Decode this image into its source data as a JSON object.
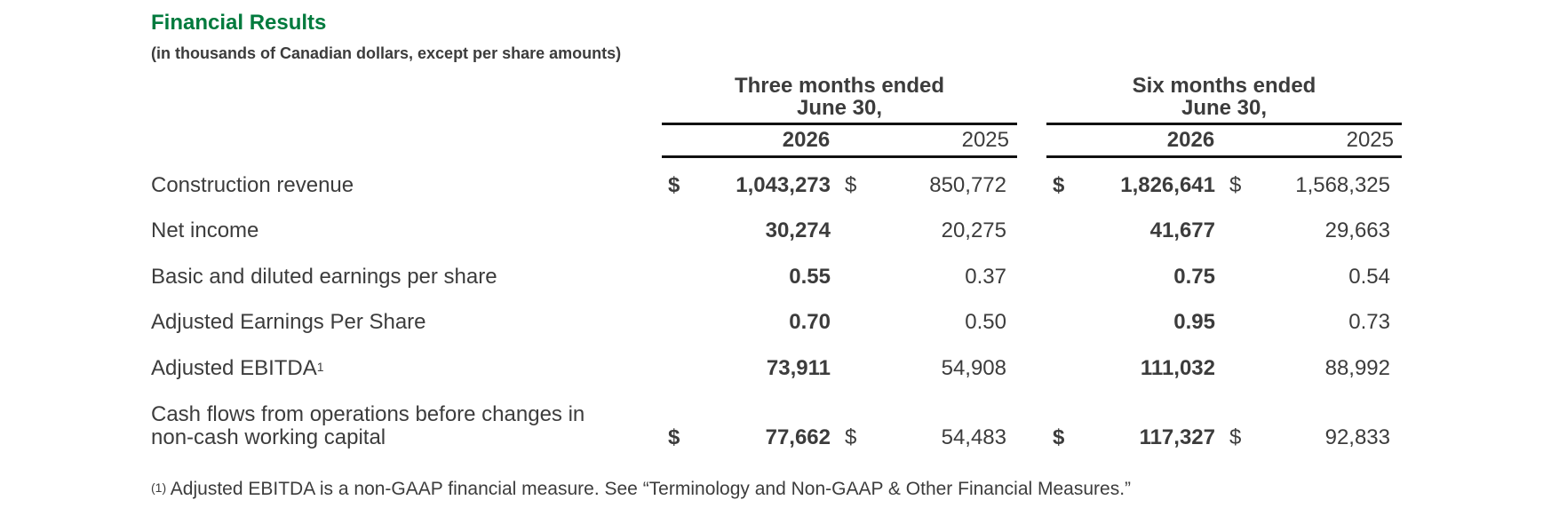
{
  "title": "Financial Results",
  "subtitle": "(in thousands of Canadian dollars, except per share amounts)",
  "periods": [
    {
      "header_line1": "Three months ended",
      "header_line2": "June 30,",
      "year_current": "2026",
      "year_prior": "2025"
    },
    {
      "header_line1": "Six months ended",
      "header_line2": "June 30,",
      "year_current": "2026",
      "year_prior": "2025"
    }
  ],
  "rows": [
    {
      "label": "Construction revenue",
      "currency": "$",
      "three_current": "1,043,273",
      "three_prior": "850,772",
      "six_current": "1,826,641",
      "six_prior": "1,568,325"
    },
    {
      "label": "Net income",
      "three_current": "30,274",
      "three_prior": "20,275",
      "six_current": "41,677",
      "six_prior": "29,663"
    },
    {
      "label": "Basic and diluted earnings per share",
      "three_current": "0.55",
      "three_prior": "0.37",
      "six_current": "0.75",
      "six_prior": "0.54"
    },
    {
      "label": "Adjusted Earnings Per Share",
      "three_current": "0.70",
      "three_prior": "0.50",
      "six_current": "0.95",
      "six_prior": "0.73"
    },
    {
      "label": "Adjusted EBITDA",
      "label_sup": "1",
      "three_current": "73,911",
      "three_prior": "54,908",
      "six_current": "111,032",
      "six_prior": "88,992"
    },
    {
      "label_line1": "Cash flows from operations before changes in",
      "label_line2": "non-cash working capital",
      "currency": "$",
      "three_current": "77,662",
      "three_prior": "54,483",
      "six_current": "117,327",
      "six_prior": "92,833"
    }
  ],
  "footnote": {
    "marker": "(1)",
    "text": " Adjusted EBITDA is a non-GAAP financial measure. See “Terminology and Non-GAAP & Other Financial Measures.”"
  }
}
